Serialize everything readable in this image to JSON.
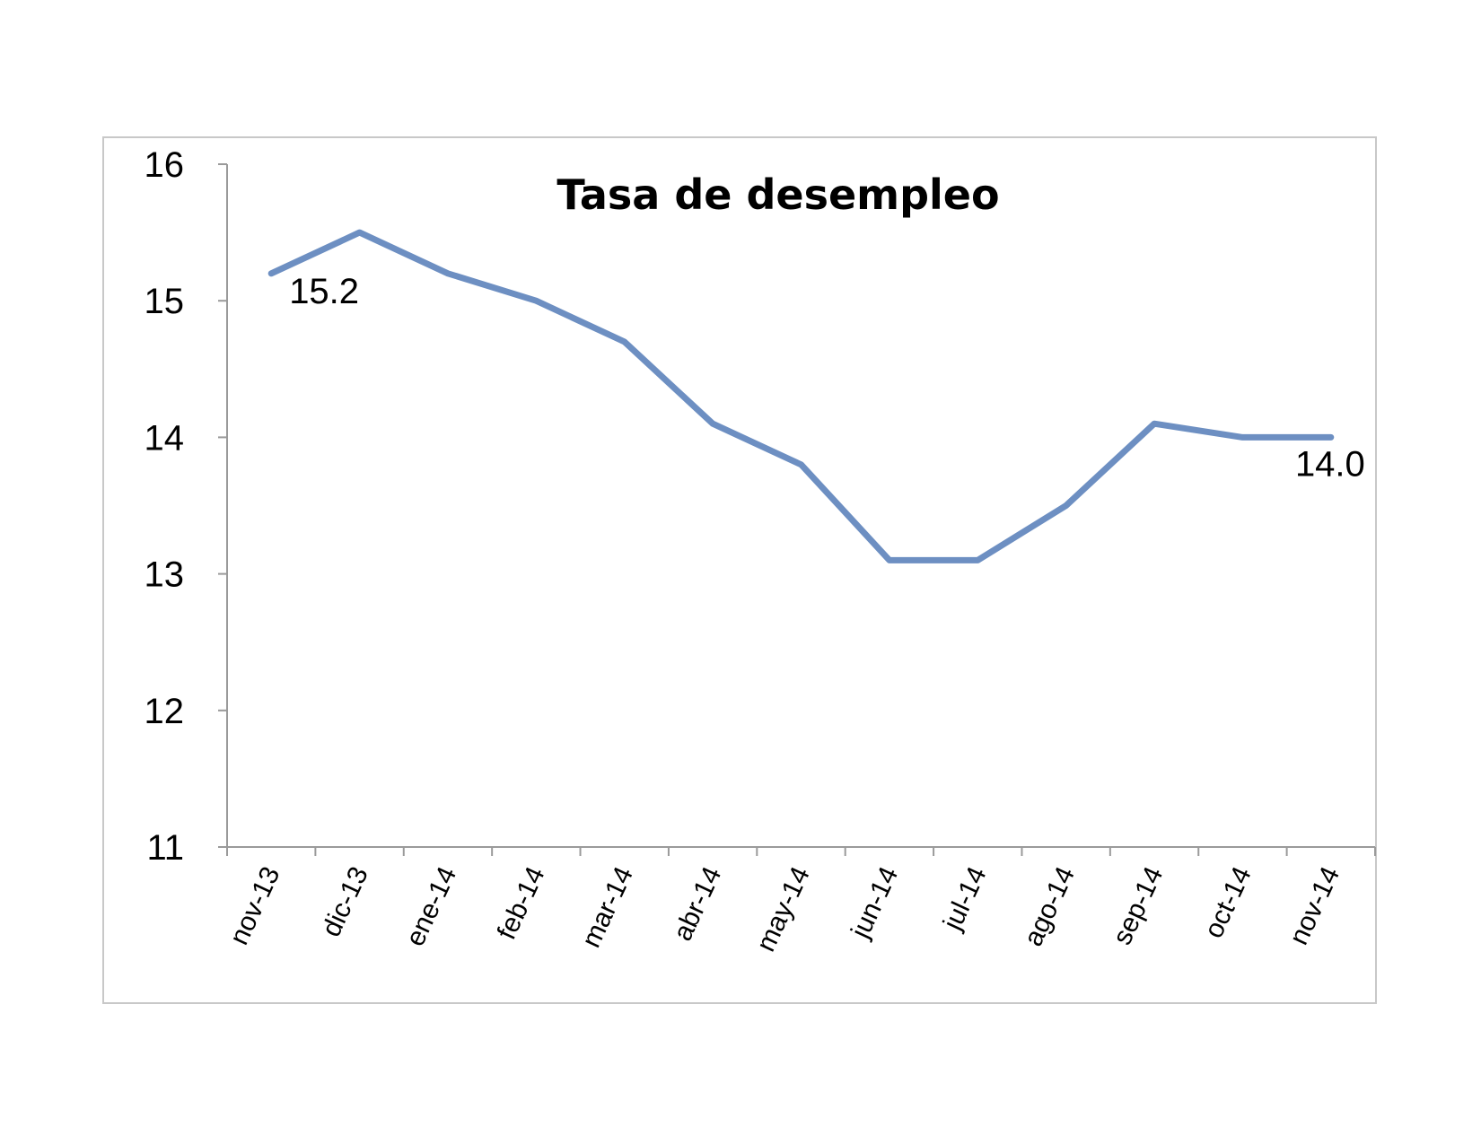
{
  "chart_data": {
    "type": "line",
    "title": "Tasa de desempleo",
    "xlabel": "",
    "ylabel": "",
    "categories": [
      "nov-13",
      "dic-13",
      "ene-14",
      "feb-14",
      "mar-14",
      "abr-14",
      "may-14",
      "jun-14",
      "jul-14",
      "ago-14",
      "sep-14",
      "oct-14",
      "nov-14"
    ],
    "series": [
      {
        "values": [
          15.2,
          15.5,
          15.2,
          15.0,
          14.7,
          14.1,
          13.8,
          13.1,
          13.1,
          13.5,
          14.1,
          14.0,
          14.0
        ]
      }
    ],
    "data_labels": [
      {
        "index": 0,
        "text": "15.2"
      },
      {
        "index": 12,
        "text": "14.0"
      }
    ],
    "ylim": [
      11,
      16
    ],
    "yticks": [
      11,
      12,
      13,
      14,
      15,
      16
    ],
    "grid": false,
    "legend": "none",
    "colors": {
      "line": "#6d8fc2",
      "axis": "#9a9a9a",
      "frame": "#c8c8c8"
    }
  }
}
